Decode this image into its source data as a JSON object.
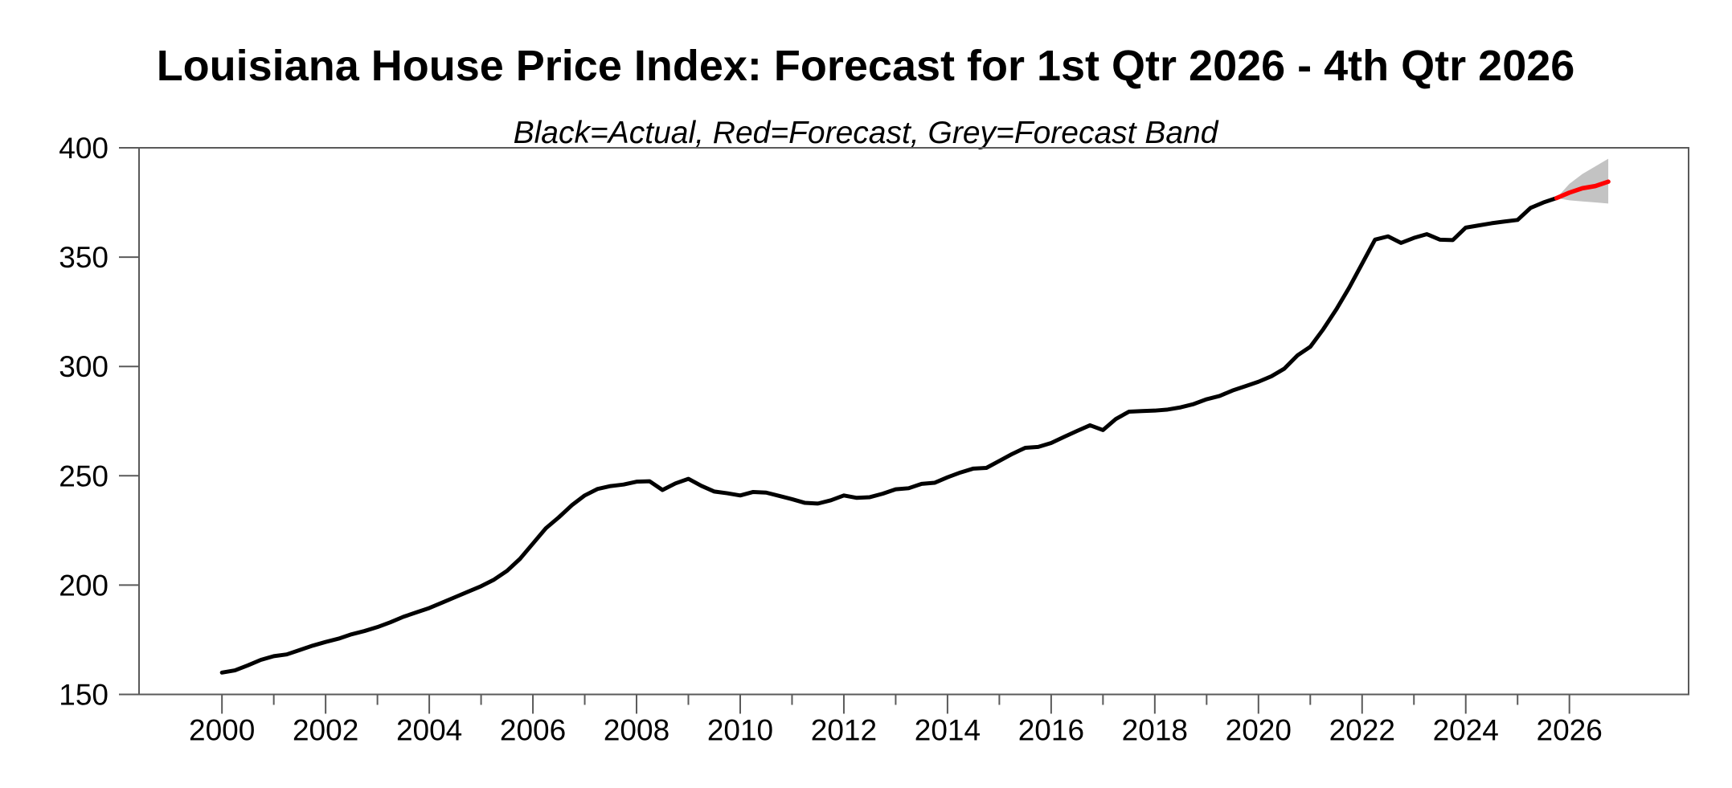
{
  "title": "Louisiana House Price Index: Forecast for 1st Qtr 2026 - 4th Qtr 2026",
  "subtitle": "Black=Actual, Red=Forecast, Grey=Forecast Band",
  "colors": {
    "actual_line": "#000000",
    "forecast_line": "#ff0000",
    "forecast_band": "#c3c3c3",
    "axis": "#5a5a5a",
    "background": "#ffffff",
    "text": "#000000"
  },
  "chart_data": {
    "type": "line",
    "title": "Louisiana House Price Index: Forecast for 1st Qtr 2026 - 4th Qtr 2026",
    "subtitle": "Black=Actual, Red=Forecast, Grey=Forecast Band",
    "xlabel": "",
    "ylabel": "",
    "xlim": [
      1998.4,
      2028.3
    ],
    "ylim": [
      150,
      400
    ],
    "grid": false,
    "legend_position": "none",
    "frequency": "quarterly",
    "x_step": 0.25,
    "y_ticks": [
      150,
      200,
      250,
      300,
      350,
      400
    ],
    "y_tick_labels": [
      "150",
      "200",
      "250",
      "300",
      "350",
      "400"
    ],
    "x_major_ticks": [
      2000,
      2002,
      2004,
      2006,
      2008,
      2010,
      2012,
      2014,
      2016,
      2018,
      2020,
      2022,
      2024,
      2026
    ],
    "x_tick_labels": [
      "2000",
      "2002",
      "2004",
      "2006",
      "2008",
      "2010",
      "2012",
      "2014",
      "2016",
      "2018",
      "2020",
      "2022",
      "2024",
      "2026"
    ],
    "x_minor_ticks": [
      2001,
      2003,
      2005,
      2007,
      2009,
      2011,
      2013,
      2015,
      2017,
      2019,
      2021,
      2023,
      2025
    ],
    "series": [
      {
        "name": "Actual",
        "color": "#000000",
        "style": "solid",
        "x_start": 2000.0,
        "values": [
          160.0,
          161.0,
          163.3,
          165.8,
          167.5,
          168.3,
          170.3,
          172.3,
          174.0,
          175.5,
          177.5,
          179.0,
          180.8,
          183.0,
          185.5,
          187.5,
          189.5,
          192.0,
          194.5,
          197.0,
          199.5,
          202.5,
          206.5,
          212.0,
          219.0,
          226.0,
          231.0,
          236.5,
          241.0,
          244.0,
          245.3,
          246.0,
          247.3,
          247.5,
          243.5,
          246.5,
          248.6,
          245.4,
          242.8,
          242.0,
          241.0,
          242.6,
          242.3,
          240.8,
          239.3,
          237.6,
          237.3,
          238.8,
          241.0,
          239.9,
          240.2,
          241.8,
          243.8,
          244.3,
          246.3,
          246.8,
          249.3,
          251.5,
          253.3,
          253.6,
          256.8,
          260.0,
          262.8,
          263.2,
          265.0,
          267.8,
          270.5,
          273.1,
          270.9,
          276.0,
          279.3,
          279.6,
          279.8,
          280.3,
          281.3,
          282.8,
          285.0,
          286.5,
          289.0,
          291.0,
          293.0,
          295.5,
          299.0,
          305.0,
          309.0,
          317.0,
          326.0,
          336.0,
          347.0,
          358.0,
          359.5,
          356.5,
          358.8,
          360.5,
          358.0,
          357.8,
          363.5,
          364.5,
          365.5,
          366.3,
          367.0,
          372.5,
          375.0,
          377.0
        ]
      },
      {
        "name": "Forecast",
        "color": "#ff0000",
        "style": "solid",
        "x_start": 2025.75,
        "values": [
          377.0,
          379.5,
          381.5,
          382.5,
          384.5
        ]
      },
      {
        "name": "Forecast Band",
        "band": true,
        "color": "#c3c3c3",
        "x_start": 2025.75,
        "lower": [
          377.0,
          376.0,
          375.5,
          375.0,
          374.5
        ],
        "upper": [
          377.0,
          383.5,
          388.0,
          391.5,
          395.0
        ]
      }
    ]
  }
}
